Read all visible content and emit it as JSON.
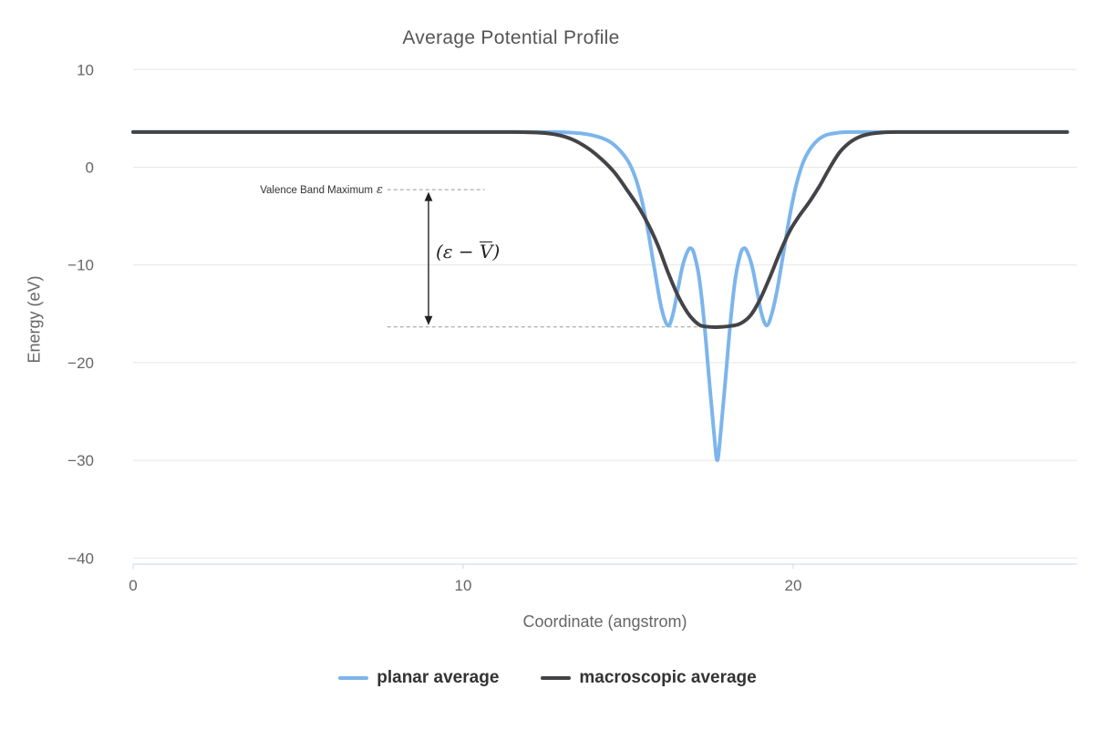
{
  "chart": {
    "title": "Average Potential Profile",
    "x_axis_title": "Coordinate (angstrom)",
    "y_axis_title": "Energy (eV)"
  },
  "legend": {
    "items": [
      "planar average",
      "macroscopic average"
    ]
  },
  "chart_data": {
    "type": "line",
    "title": "Average Potential Profile",
    "xlabel": "Coordinate (angstrom)",
    "ylabel": "Energy (eV)",
    "xlim": [
      0,
      28.6
    ],
    "ylim": [
      -40.6,
      13.4
    ],
    "x_ticks": [
      0,
      10,
      20
    ],
    "y_ticks": [
      10,
      0,
      -10,
      -20,
      -30,
      -40
    ],
    "grid": "horizontal",
    "legend_position": "bottom-center",
    "style": {
      "grid_color": "#e6e6e6",
      "axis_line_color": "#ccd6eb",
      "tick_label_color": "#666666",
      "title_color": "#555555",
      "legend_text_color": "#333333",
      "annotation_color": "#222222",
      "dash_color": "#999999",
      "background": "#ffffff"
    },
    "series": [
      {
        "name": "planar average",
        "color": "#7cb5ec",
        "points": [
          [
            0,
            3.6
          ],
          [
            2,
            3.6
          ],
          [
            4,
            3.6
          ],
          [
            6,
            3.6
          ],
          [
            8,
            3.6
          ],
          [
            10,
            3.6
          ],
          [
            11.5,
            3.6
          ],
          [
            12.8,
            3.6
          ],
          [
            13.2,
            3.55
          ],
          [
            13.6,
            3.45
          ],
          [
            14.0,
            3.2
          ],
          [
            14.4,
            2.7
          ],
          [
            14.7,
            1.9
          ],
          [
            15.0,
            0.6
          ],
          [
            15.2,
            -0.9
          ],
          [
            15.4,
            -3.2
          ],
          [
            15.6,
            -6.5
          ],
          [
            15.8,
            -10.5
          ],
          [
            16.0,
            -14.3
          ],
          [
            16.2,
            -16.2
          ],
          [
            16.35,
            -15.1
          ],
          [
            16.5,
            -12.6
          ],
          [
            16.65,
            -10.1
          ],
          [
            16.8,
            -8.6
          ],
          [
            16.9,
            -8.3
          ],
          [
            17.0,
            -8.9
          ],
          [
            17.15,
            -11.3
          ],
          [
            17.3,
            -15.8
          ],
          [
            17.45,
            -21.6
          ],
          [
            17.6,
            -27.2
          ],
          [
            17.7,
            -30.0
          ],
          [
            17.8,
            -27.2
          ],
          [
            17.95,
            -21.6
          ],
          [
            18.1,
            -15.8
          ],
          [
            18.25,
            -11.3
          ],
          [
            18.4,
            -8.9
          ],
          [
            18.5,
            -8.3
          ],
          [
            18.6,
            -8.6
          ],
          [
            18.75,
            -10.1
          ],
          [
            18.9,
            -12.6
          ],
          [
            19.05,
            -15.1
          ],
          [
            19.2,
            -16.2
          ],
          [
            19.35,
            -15.0
          ],
          [
            19.5,
            -12.8
          ],
          [
            19.65,
            -9.9
          ],
          [
            19.8,
            -6.8
          ],
          [
            19.95,
            -4.0
          ],
          [
            20.1,
            -1.7
          ],
          [
            20.3,
            0.5
          ],
          [
            20.5,
            1.8
          ],
          [
            20.75,
            2.8
          ],
          [
            21.0,
            3.3
          ],
          [
            21.3,
            3.5
          ],
          [
            21.7,
            3.6
          ],
          [
            23,
            3.6
          ],
          [
            25,
            3.6
          ],
          [
            27,
            3.6
          ],
          [
            28.3,
            3.6
          ]
        ]
      },
      {
        "name": "macroscopic average",
        "color": "#434348",
        "points": [
          [
            0,
            3.6
          ],
          [
            2,
            3.6
          ],
          [
            4,
            3.6
          ],
          [
            6,
            3.6
          ],
          [
            8,
            3.6
          ],
          [
            10,
            3.6
          ],
          [
            11.5,
            3.6
          ],
          [
            12.2,
            3.55
          ],
          [
            12.6,
            3.45
          ],
          [
            13.0,
            3.2
          ],
          [
            13.4,
            2.7
          ],
          [
            13.8,
            1.9
          ],
          [
            14.2,
            0.8
          ],
          [
            14.6,
            -0.6
          ],
          [
            15.0,
            -2.5
          ],
          [
            15.3,
            -4.0
          ],
          [
            15.6,
            -5.8
          ],
          [
            15.9,
            -8.0
          ],
          [
            16.2,
            -10.7
          ],
          [
            16.5,
            -13.1
          ],
          [
            16.8,
            -14.9
          ],
          [
            17.0,
            -15.7
          ],
          [
            17.2,
            -16.2
          ],
          [
            17.5,
            -16.35
          ],
          [
            17.8,
            -16.35
          ],
          [
            18.1,
            -16.25
          ],
          [
            18.4,
            -16.0
          ],
          [
            18.7,
            -15.2
          ],
          [
            19.0,
            -13.5
          ],
          [
            19.3,
            -11.2
          ],
          [
            19.6,
            -8.7
          ],
          [
            19.9,
            -6.5
          ],
          [
            20.2,
            -4.9
          ],
          [
            20.5,
            -3.5
          ],
          [
            20.8,
            -1.9
          ],
          [
            21.1,
            -0.1
          ],
          [
            21.4,
            1.5
          ],
          [
            21.7,
            2.5
          ],
          [
            22.0,
            3.1
          ],
          [
            22.3,
            3.4
          ],
          [
            22.7,
            3.55
          ],
          [
            23.1,
            3.6
          ],
          [
            25,
            3.6
          ],
          [
            27,
            3.6
          ],
          [
            28.3,
            3.6
          ]
        ]
      }
    ],
    "annotations": {
      "vbm_label": "Valence Band Maximum",
      "vbm_symbol": "ε",
      "vbm_level_eV": -2.3,
      "plateau_level_eV": -16.35,
      "vbm_dash_x_range": [
        7.7,
        10.65
      ],
      "plateau_dash_x_range": [
        7.7,
        18.35
      ],
      "arrow_x_angstrom": 8.95,
      "gap_label": {
        "open": "(",
        "epsilon": "ε",
        "minus": " − ",
        "v_overline": "V",
        "close": ")"
      }
    }
  }
}
